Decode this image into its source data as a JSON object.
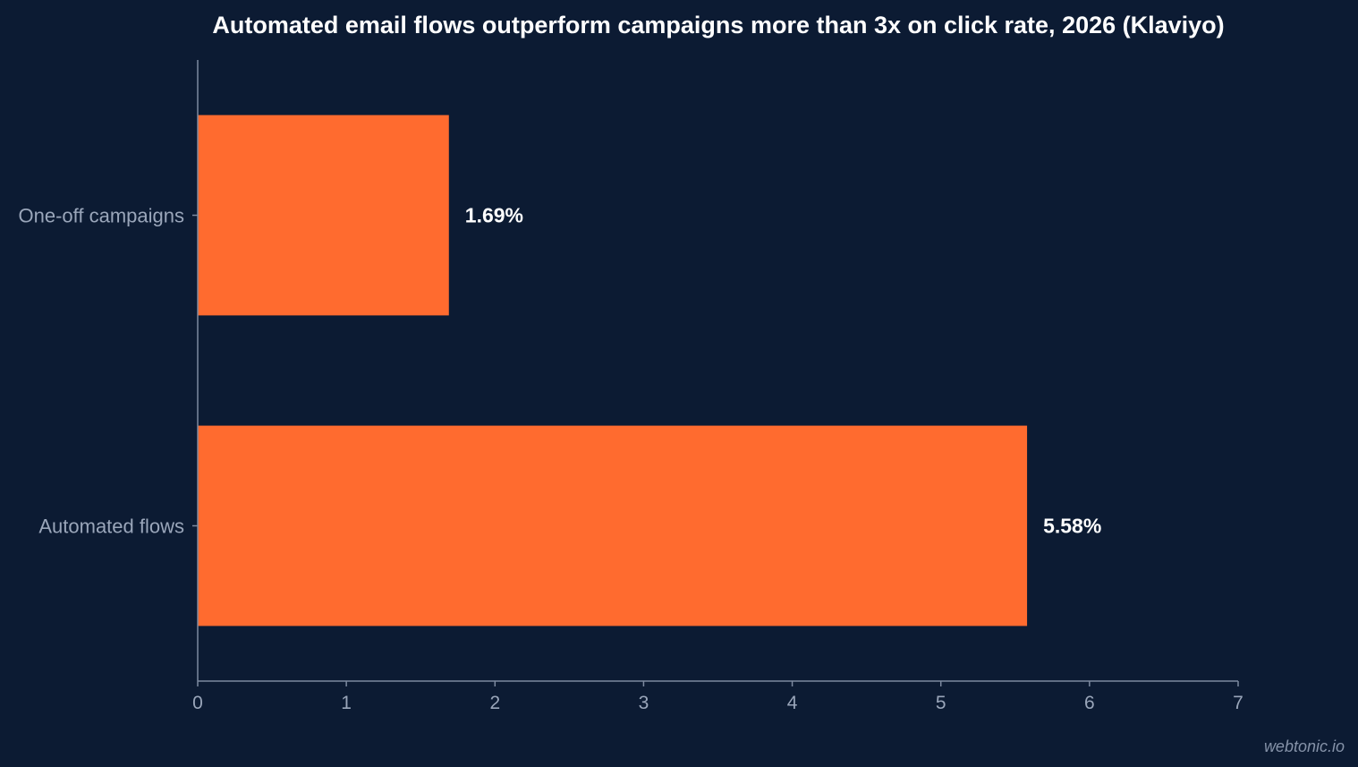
{
  "chart_data": {
    "type": "bar",
    "orientation": "horizontal",
    "title": "Automated email flows outperform campaigns more than 3x on click rate, 2026 (Klaviyo)",
    "categories": [
      "One-off campaigns",
      "Automated flows"
    ],
    "values": [
      1.69,
      5.58
    ],
    "data_labels": [
      "1.69%",
      "5.58%"
    ],
    "xlim": [
      0,
      7
    ],
    "x_ticks": [
      0,
      1,
      2,
      3,
      4,
      5,
      6,
      7
    ],
    "x_tick_labels": [
      "0",
      "1",
      "2",
      "3",
      "4",
      "5",
      "6",
      "7"
    ],
    "xlabel": "",
    "ylabel": "",
    "grid": false,
    "legend": "none",
    "bar_color": "#ff6b2f",
    "background_color": "#0c1b33"
  },
  "credit": "webtonic.io"
}
